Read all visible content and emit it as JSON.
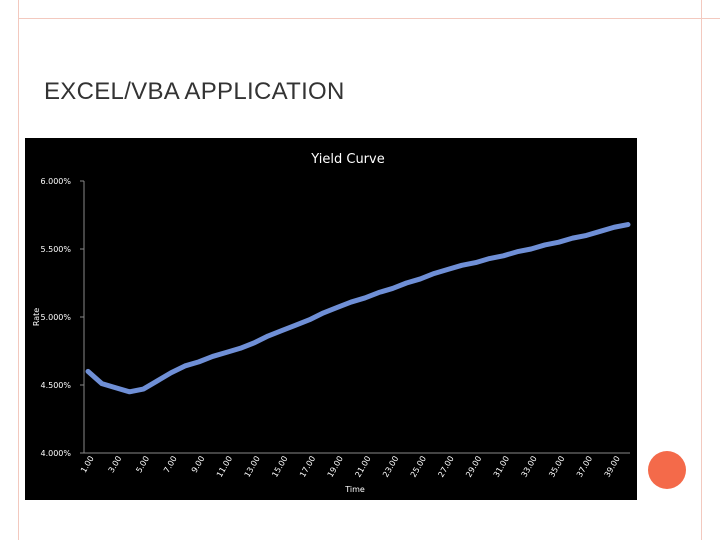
{
  "slide": {
    "title": "EXCEL/VBA APPLICATION"
  },
  "chart_data": {
    "type": "line",
    "title": "Yield Curve",
    "xlabel": "Time",
    "ylabel": "Rate",
    "ylim": [
      0.04,
      0.06
    ],
    "y_ticks": [
      "4.000%",
      "4.500%",
      "5.000%",
      "5.500%",
      "6.000%"
    ],
    "y_tick_values": [
      0.04,
      0.045,
      0.05,
      0.055,
      0.06
    ],
    "x_tick_labels": [
      "1.00",
      "3.00",
      "5.00",
      "7.00",
      "9.00",
      "11.00",
      "13.00",
      "15.00",
      "17.00",
      "19.00",
      "21.00",
      "23.00",
      "25.00",
      "27.00",
      "29.00",
      "31.00",
      "33.00",
      "35.00",
      "37.00",
      "39.00"
    ],
    "grid": false,
    "legend": "none",
    "series": [
      {
        "color": "#6f8fd6",
        "x": [
          1,
          2,
          3,
          4,
          5,
          6,
          7,
          8,
          9,
          10,
          11,
          12,
          13,
          14,
          15,
          16,
          17,
          18,
          19,
          20,
          21,
          22,
          23,
          24,
          25,
          26,
          27,
          28,
          29,
          30,
          31,
          32,
          33,
          34,
          35,
          36,
          37,
          38,
          39,
          40
        ],
        "values": [
          0.046,
          0.0451,
          0.0448,
          0.0445,
          0.0447,
          0.0453,
          0.0459,
          0.0464,
          0.0467,
          0.0471,
          0.0474,
          0.0477,
          0.0481,
          0.0486,
          0.049,
          0.0494,
          0.0498,
          0.0503,
          0.0507,
          0.0511,
          0.0514,
          0.0518,
          0.0521,
          0.0525,
          0.0528,
          0.0532,
          0.0535,
          0.0538,
          0.054,
          0.0543,
          0.0545,
          0.0548,
          0.055,
          0.0553,
          0.0555,
          0.0558,
          0.056,
          0.0563,
          0.0566,
          0.0568
        ]
      }
    ]
  }
}
